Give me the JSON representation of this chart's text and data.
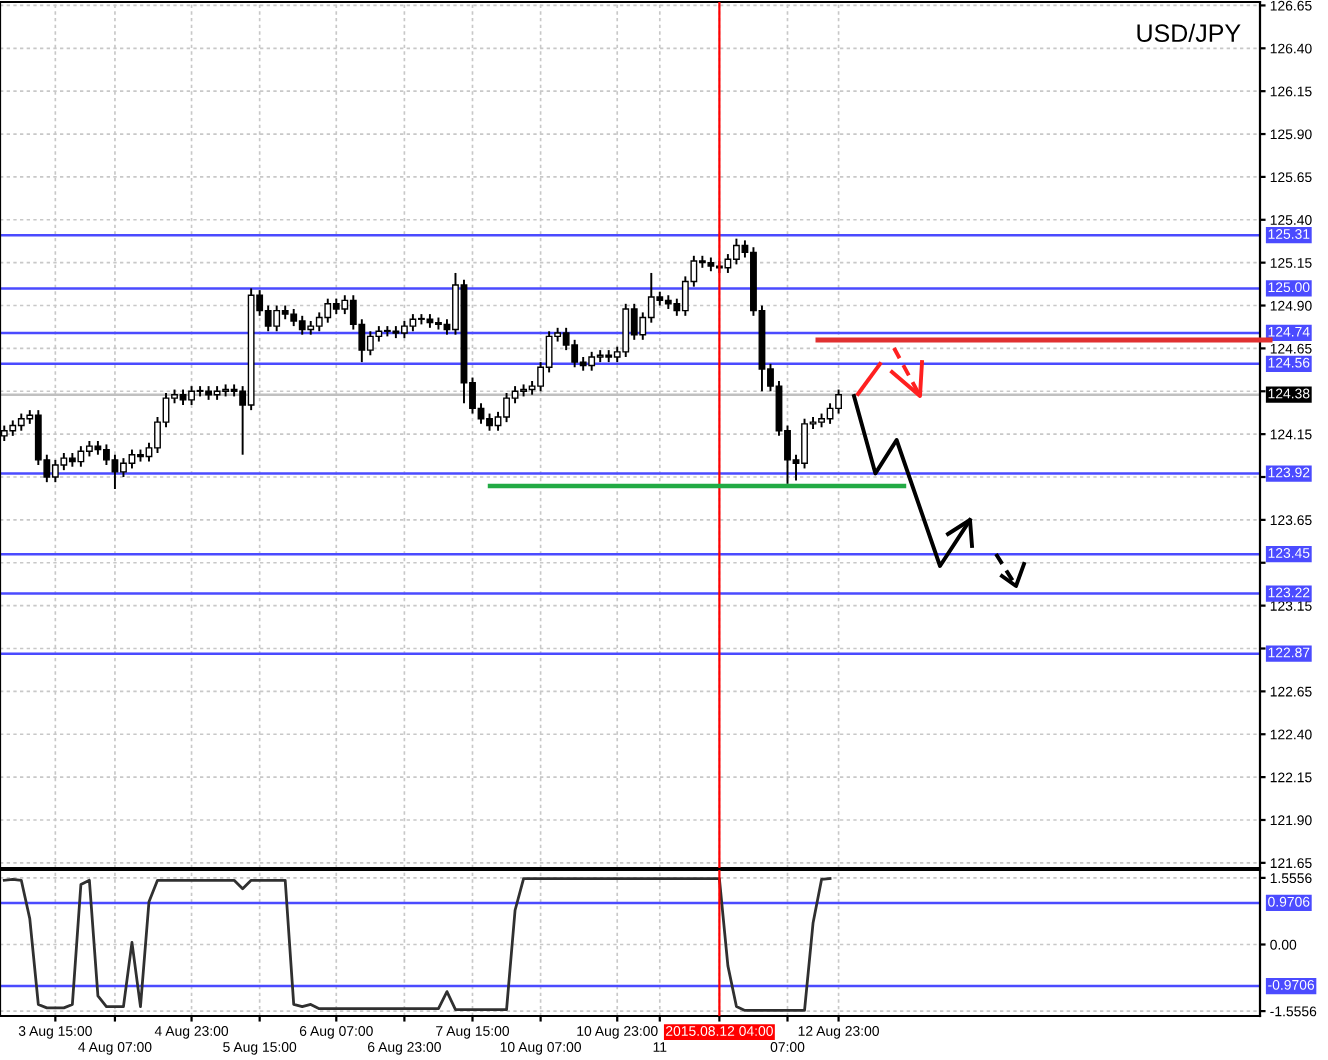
{
  "chart_data": [
    {
      "type": "candlestick",
      "title": "USD/JPY",
      "categories": [
        null,
        null,
        null,
        null,
        null,
        null,
        "3 Aug 15:00",
        null,
        null,
        null,
        null,
        null,
        null,
        "4 Aug 07:00",
        null,
        null,
        null,
        null,
        null,
        null,
        null,
        null,
        "4 Aug 23:00",
        null,
        null,
        null,
        null,
        null,
        null,
        null,
        "5 Aug 15:00",
        null,
        null,
        null,
        null,
        null,
        null,
        null,
        null,
        "6 Aug 07:00",
        null,
        null,
        null,
        null,
        null,
        null,
        null,
        "6 Aug 23:00",
        null,
        null,
        null,
        null,
        null,
        null,
        null,
        "7 Aug 15:00",
        null,
        null,
        null,
        null,
        null,
        null,
        null,
        "10 Aug 07:00",
        null,
        null,
        null,
        null,
        null,
        null,
        null,
        null,
        "10 Aug 23:00",
        null,
        null,
        null,
        null,
        "11",
        null,
        null,
        null,
        null,
        null,
        null,
        "2015.08.12 04:00",
        null,
        null,
        null,
        null,
        null,
        null,
        null,
        "07:00",
        null,
        null,
        null,
        null,
        null,
        "12 Aug 23:00",
        null,
        null,
        null,
        null,
        null,
        null,
        null,
        null,
        null,
        null,
        null,
        null,
        null,
        null,
        null,
        null,
        null,
        null,
        null,
        null,
        null,
        null,
        null,
        null,
        null,
        null,
        null,
        null,
        null,
        null,
        null,
        null,
        null,
        null,
        null,
        null,
        null,
        null,
        null,
        null,
        null,
        null,
        null,
        null,
        null,
        null,
        null,
        null,
        null
      ],
      "ohlc": [
        [
          124.14,
          124.2,
          124.11,
          124.17
        ],
        [
          124.17,
          124.23,
          124.14,
          124.2
        ],
        [
          124.2,
          124.27,
          124.17,
          124.24
        ],
        [
          124.24,
          124.29,
          124.21,
          124.26
        ],
        [
          124.26,
          124.29,
          123.97,
          124.0
        ],
        [
          124.0,
          124.03,
          123.87,
          123.9
        ],
        [
          123.9,
          124.0,
          123.87,
          123.97
        ],
        [
          123.97,
          124.04,
          123.94,
          124.01
        ],
        [
          124.01,
          124.04,
          123.96,
          123.99
        ],
        [
          123.99,
          124.08,
          123.96,
          124.05
        ],
        [
          124.05,
          124.11,
          124.02,
          124.08
        ],
        [
          124.08,
          124.11,
          124.03,
          124.06
        ],
        [
          124.06,
          124.09,
          123.97,
          124.0
        ],
        [
          124.0,
          124.03,
          123.83,
          123.93
        ],
        [
          123.93,
          124.01,
          123.9,
          123.98
        ],
        [
          123.98,
          124.06,
          123.95,
          124.03
        ],
        [
          124.03,
          124.06,
          123.99,
          124.02
        ],
        [
          124.02,
          124.1,
          123.99,
          124.07
        ],
        [
          124.07,
          124.25,
          124.04,
          124.22
        ],
        [
          124.22,
          124.39,
          124.19,
          124.36
        ],
        [
          124.36,
          124.41,
          124.33,
          124.38
        ],
        [
          124.38,
          124.41,
          124.32,
          124.35
        ],
        [
          124.35,
          124.43,
          124.32,
          124.4
        ],
        [
          124.4,
          124.43,
          124.37,
          124.4
        ],
        [
          124.4,
          124.43,
          124.35,
          124.38
        ],
        [
          124.38,
          124.43,
          124.35,
          124.4
        ],
        [
          124.4,
          124.44,
          124.37,
          124.41
        ],
        [
          124.41,
          124.44,
          124.37,
          124.4
        ],
        [
          124.4,
          124.43,
          124.03,
          124.32
        ],
        [
          124.32,
          125.0,
          124.29,
          124.96
        ],
        [
          124.96,
          124.99,
          124.84,
          124.87
        ],
        [
          124.87,
          124.9,
          124.75,
          124.78
        ],
        [
          124.78,
          124.9,
          124.75,
          124.87
        ],
        [
          124.87,
          124.9,
          124.82,
          124.85
        ],
        [
          124.85,
          124.88,
          124.78,
          124.81
        ],
        [
          124.81,
          124.84,
          124.73,
          124.76
        ],
        [
          124.76,
          124.81,
          124.73,
          124.78
        ],
        [
          124.78,
          124.86,
          124.75,
          124.83
        ],
        [
          124.83,
          124.94,
          124.8,
          124.91
        ],
        [
          124.91,
          124.94,
          124.85,
          124.88
        ],
        [
          124.88,
          124.96,
          124.85,
          124.93
        ],
        [
          124.93,
          124.96,
          124.76,
          124.79
        ],
        [
          124.79,
          124.82,
          124.57,
          124.64
        ],
        [
          124.64,
          124.75,
          124.61,
          124.72
        ],
        [
          124.72,
          124.78,
          124.69,
          124.75
        ],
        [
          124.75,
          124.78,
          124.72,
          124.75
        ],
        [
          124.75,
          124.78,
          124.71,
          124.74
        ],
        [
          124.74,
          124.81,
          124.71,
          124.78
        ],
        [
          124.78,
          124.85,
          124.75,
          124.82
        ],
        [
          124.82,
          124.85,
          124.79,
          124.82
        ],
        [
          124.82,
          124.85,
          124.77,
          124.8
        ],
        [
          124.8,
          124.83,
          124.76,
          124.79
        ],
        [
          124.79,
          124.82,
          124.73,
          124.76
        ],
        [
          124.76,
          125.09,
          124.73,
          125.02
        ],
        [
          125.02,
          125.05,
          124.33,
          124.45
        ],
        [
          124.45,
          124.48,
          124.27,
          124.3
        ],
        [
          124.3,
          124.33,
          124.21,
          124.24
        ],
        [
          124.24,
          124.27,
          124.17,
          124.2
        ],
        [
          124.2,
          124.28,
          124.17,
          124.25
        ],
        [
          124.25,
          124.39,
          124.22,
          124.36
        ],
        [
          124.36,
          124.43,
          124.33,
          124.4
        ],
        [
          124.4,
          124.44,
          124.37,
          124.41
        ],
        [
          124.41,
          124.46,
          124.38,
          124.43
        ],
        [
          124.43,
          124.57,
          124.4,
          124.54
        ],
        [
          124.54,
          124.75,
          124.51,
          124.72
        ],
        [
          124.72,
          124.77,
          124.69,
          124.74
        ],
        [
          124.74,
          124.77,
          124.64,
          124.67
        ],
        [
          124.67,
          124.7,
          124.54,
          124.57
        ],
        [
          124.57,
          124.6,
          124.52,
          124.55
        ],
        [
          124.55,
          124.63,
          124.52,
          124.6
        ],
        [
          124.6,
          124.64,
          124.57,
          124.61
        ],
        [
          124.61,
          124.64,
          124.57,
          124.6
        ],
        [
          124.6,
          124.66,
          124.57,
          124.63
        ],
        [
          124.63,
          124.91,
          124.6,
          124.88
        ],
        [
          124.88,
          124.91,
          124.7,
          124.73
        ],
        [
          124.73,
          124.86,
          124.7,
          124.83
        ],
        [
          124.83,
          125.09,
          124.8,
          124.95
        ],
        [
          124.95,
          124.98,
          124.9,
          124.93
        ],
        [
          124.93,
          124.96,
          124.88,
          124.91
        ],
        [
          124.91,
          124.94,
          124.84,
          124.87
        ],
        [
          124.87,
          125.07,
          124.84,
          125.04
        ],
        [
          125.04,
          125.19,
          125.01,
          125.16
        ],
        [
          125.16,
          125.19,
          125.12,
          125.15
        ],
        [
          125.15,
          125.18,
          125.1,
          125.13
        ],
        [
          125.13,
          125.16,
          125.09,
          125.12
        ],
        [
          125.12,
          125.2,
          125.09,
          125.17
        ],
        [
          125.17,
          125.29,
          125.14,
          125.25
        ],
        [
          125.25,
          125.28,
          125.18,
          125.21
        ],
        [
          125.21,
          125.24,
          124.84,
          124.87
        ],
        [
          124.87,
          124.9,
          124.4,
          124.53
        ],
        [
          124.53,
          124.56,
          124.4,
          124.43
        ],
        [
          124.43,
          124.46,
          124.14,
          124.17
        ],
        [
          124.17,
          124.2,
          123.86,
          124.0
        ],
        [
          124.0,
          124.03,
          123.88,
          123.98
        ],
        [
          123.98,
          124.24,
          123.95,
          124.21
        ],
        [
          124.21,
          124.25,
          124.18,
          124.22
        ],
        [
          124.22,
          124.27,
          124.19,
          124.24
        ],
        [
          124.24,
          124.33,
          124.21,
          124.3
        ],
        [
          124.3,
          124.41,
          124.27,
          124.38
        ],
        null,
        null,
        null,
        null,
        null,
        null,
        null,
        null,
        null,
        null,
        null,
        null,
        null,
        null,
        null,
        null,
        null,
        null,
        null,
        null,
        null,
        null,
        null,
        null,
        null,
        null,
        null,
        null,
        null,
        null,
        null,
        null,
        null,
        null,
        null,
        null,
        null,
        null,
        null,
        null,
        null,
        null,
        null,
        null,
        null,
        null,
        null,
        null,
        null
      ],
      "ylim": [
        121.62,
        126.67
      ],
      "yticks": [
        121.65,
        {
          "value": 121.9,
          "label": "121.90"
        },
        122.15,
        {
          "value": 122.4,
          "label": "122.40"
        },
        122.65,
        {
          "value": 122.9,
          "label": null
        },
        123.15,
        {
          "value": 123.4,
          "label": null
        },
        123.65,
        {
          "value": 123.9,
          "label": null
        },
        124.15,
        {
          "value": 124.4,
          "label": null
        },
        124.65,
        {
          "value": 124.9,
          "label": "124.90"
        },
        125.15,
        {
          "value": 125.4,
          "label": "125.40"
        },
        125.65,
        {
          "value": 125.9,
          "label": "125.90"
        },
        126.15,
        {
          "value": 126.4,
          "label": "126.40"
        },
        126.65
      ],
      "ref_lines": [
        {
          "axis": "y",
          "value": 125.31,
          "label": "125.31",
          "color": "#4b4bff"
        },
        {
          "axis": "y",
          "value": 125.0,
          "label": "125.00",
          "color": "#4b4bff"
        },
        {
          "axis": "y",
          "value": 124.74,
          "label": "124.74",
          "color": "#4b4bff"
        },
        {
          "axis": "y",
          "value": 124.56,
          "label": "124.56",
          "color": "#4b4bff"
        },
        {
          "axis": "y",
          "value": 124.38,
          "label": "124.38",
          "color": "#c0c0c0"
        },
        {
          "axis": "y",
          "value": 123.92,
          "label": "123.92",
          "color": "#4b4bff"
        },
        {
          "axis": "y",
          "value": 123.45,
          "label": "123.45",
          "color": "#4b4bff"
        },
        {
          "axis": "y",
          "value": 123.22,
          "label": "123.22",
          "color": "#4b4bff"
        },
        {
          "axis": "y",
          "value": 122.87,
          "label": "122.87",
          "color": "#4b4bff"
        },
        {
          "axis": "x",
          "value": "2015.08.12 04:00",
          "color": "#ff0000"
        }
      ],
      "grid": true,
      "tick_labels": "y"
    },
    {
      "type": "line",
      "categories": [
        null,
        null,
        null,
        null,
        null,
        null,
        "3 Aug 15:00",
        null,
        null,
        null,
        null,
        null,
        null,
        "4 Aug 07:00",
        null,
        null,
        null,
        null,
        null,
        null,
        null,
        null,
        "4 Aug 23:00",
        null,
        null,
        null,
        null,
        null,
        null,
        null,
        "5 Aug 15:00",
        null,
        null,
        null,
        null,
        null,
        null,
        null,
        null,
        "6 Aug 07:00",
        null,
        null,
        null,
        null,
        null,
        null,
        null,
        "6 Aug 23:00",
        null,
        null,
        null,
        null,
        null,
        null,
        null,
        "7 Aug 15:00",
        null,
        null,
        null,
        null,
        null,
        null,
        null,
        "10 Aug 07:00",
        null,
        null,
        null,
        null,
        null,
        null,
        null,
        null,
        "10 Aug 23:00",
        null,
        null,
        null,
        null,
        "11",
        null,
        null,
        null,
        null,
        null,
        null,
        "2015.08.12 04:00",
        null,
        null,
        null,
        null,
        null,
        null,
        null,
        "07:00",
        null,
        null,
        null,
        null,
        null,
        "12 Aug 23:00",
        null,
        null,
        null,
        null,
        null,
        null,
        null,
        null,
        null,
        null,
        null,
        null,
        null,
        null,
        null,
        null,
        null,
        null,
        null,
        null,
        null,
        null,
        null,
        null,
        null,
        null,
        null,
        null,
        null,
        null,
        null,
        null,
        null,
        null,
        null,
        null,
        null,
        null,
        null,
        null,
        null,
        null,
        null,
        null,
        null,
        null,
        null,
        null,
        null
      ],
      "series": [
        {
          "color": "#303030",
          "values": [
            1.5,
            1.52,
            1.5,
            0.6,
            -1.4,
            -1.48,
            -1.48,
            -1.48,
            -1.4,
            1.4,
            1.5,
            -1.2,
            -1.45,
            -1.45,
            -1.45,
            0.05,
            -1.45,
            1.0,
            1.5,
            1.5,
            1.5,
            1.5,
            1.5,
            1.5,
            1.5,
            1.5,
            1.5,
            1.5,
            1.3,
            1.5,
            1.5,
            1.5,
            1.5,
            1.5,
            -1.4,
            -1.45,
            -1.4,
            -1.5,
            -1.5,
            -1.5,
            -1.5,
            -1.5,
            -1.5,
            -1.5,
            -1.5,
            -1.5,
            -1.5,
            -1.5,
            -1.5,
            -1.5,
            -1.5,
            -1.5,
            -1.1,
            -1.52,
            -1.52,
            -1.52,
            -1.52,
            -1.52,
            -1.52,
            -1.52,
            0.8,
            1.54,
            1.54,
            1.54,
            1.54,
            1.54,
            1.54,
            1.54,
            1.54,
            1.54,
            1.54,
            1.54,
            1.54,
            1.54,
            1.54,
            1.54,
            1.54,
            1.54,
            1.54,
            1.54,
            1.54,
            1.54,
            1.54,
            1.54,
            1.54,
            -0.5,
            -1.45,
            -1.54,
            -1.54,
            -1.54,
            -1.54,
            -1.54,
            -1.54,
            -1.54,
            -1.54,
            0.5,
            1.52,
            1.54,
            null,
            null,
            null,
            null,
            null,
            null,
            null,
            null,
            null,
            null,
            null,
            null,
            null,
            null,
            null,
            null,
            null,
            null,
            null,
            null,
            null,
            null,
            null,
            null,
            null,
            null,
            null,
            null,
            null,
            null,
            null,
            null,
            null,
            null,
            null,
            null,
            null,
            null,
            null,
            null,
            null,
            null,
            null,
            null,
            null,
            null,
            null,
            null,
            null,
            null
          ]
        }
      ],
      "ylim": [
        -1.67,
        1.74
      ],
      "yticks": [
        -1.5556,
        {
          "value": 0,
          "label": "0.00"
        },
        1.5556
      ],
      "ref_lines": [
        {
          "axis": "y",
          "value": 0.9706,
          "label": "0.9706",
          "color": "#4b4bff"
        },
        {
          "axis": "y",
          "value": -0.9706,
          "label": "-0.9706",
          "color": "#4b4bff"
        },
        {
          "axis": "x",
          "value": "2015.08.12 04:00",
          "color": "#ff0000"
        }
      ],
      "grid": true
    }
  ]
}
